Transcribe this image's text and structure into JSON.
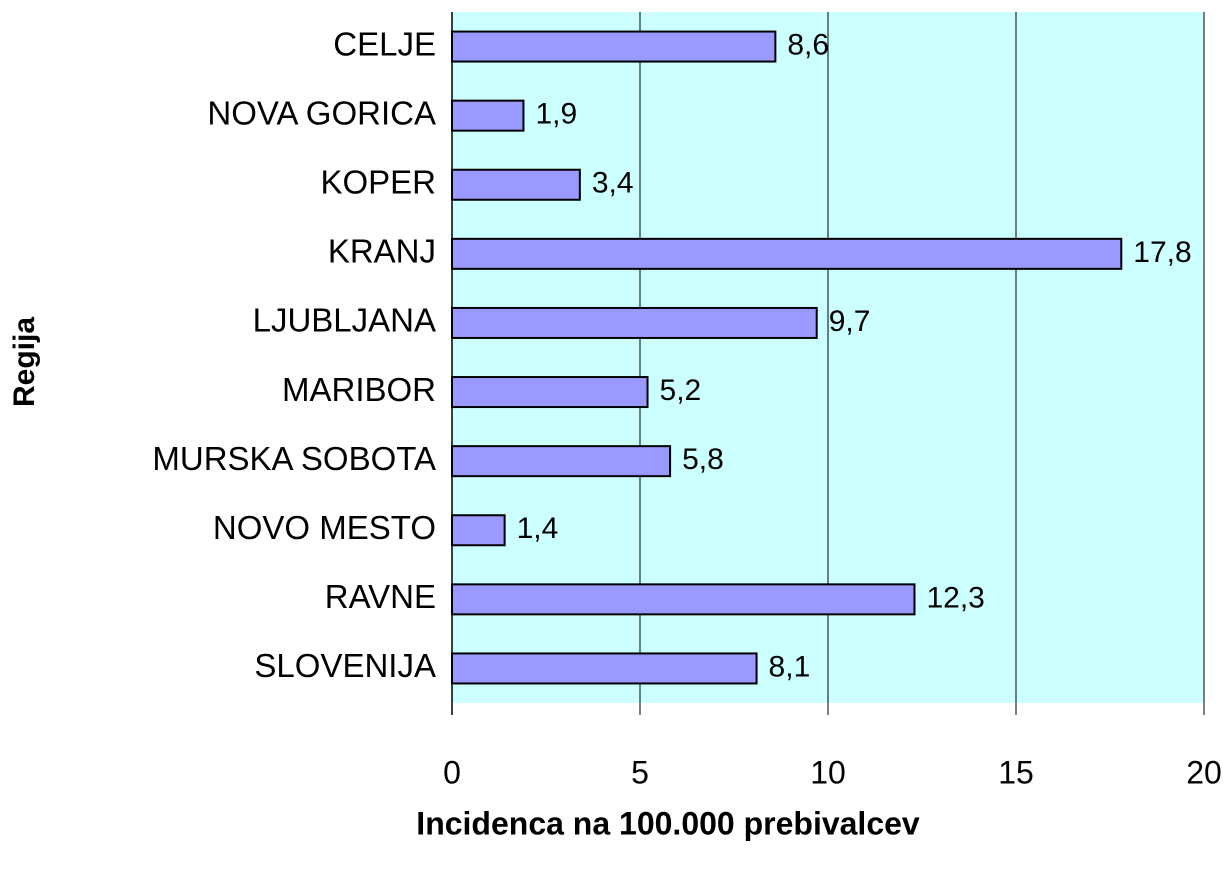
{
  "chart_data": {
    "type": "bar",
    "orientation": "horizontal",
    "x_label": "Incidenca na 100.000 prebivalcev",
    "y_label": "Regija",
    "categories": [
      "CELJE",
      "NOVA GORICA",
      "KOPER",
      "KRANJ",
      "LJUBLJANA",
      "MARIBOR",
      "MURSKA SOBOTA",
      "NOVO MESTO",
      "RAVNE",
      "SLOVENIJA"
    ],
    "values": [
      8.6,
      1.9,
      3.4,
      17.8,
      9.7,
      5.2,
      5.8,
      1.4,
      12.3,
      8.1
    ],
    "value_labels": [
      "8,6",
      "1,9",
      "3,4",
      "17,8",
      "9,7",
      "5,2",
      "5,8",
      "1,4",
      "12,3",
      "8,1"
    ],
    "color": "#9999ff",
    "background": "#ccffff",
    "xlim": [
      0,
      20
    ],
    "xticks": [
      0,
      5,
      10,
      15,
      20
    ],
    "grid": true
  }
}
